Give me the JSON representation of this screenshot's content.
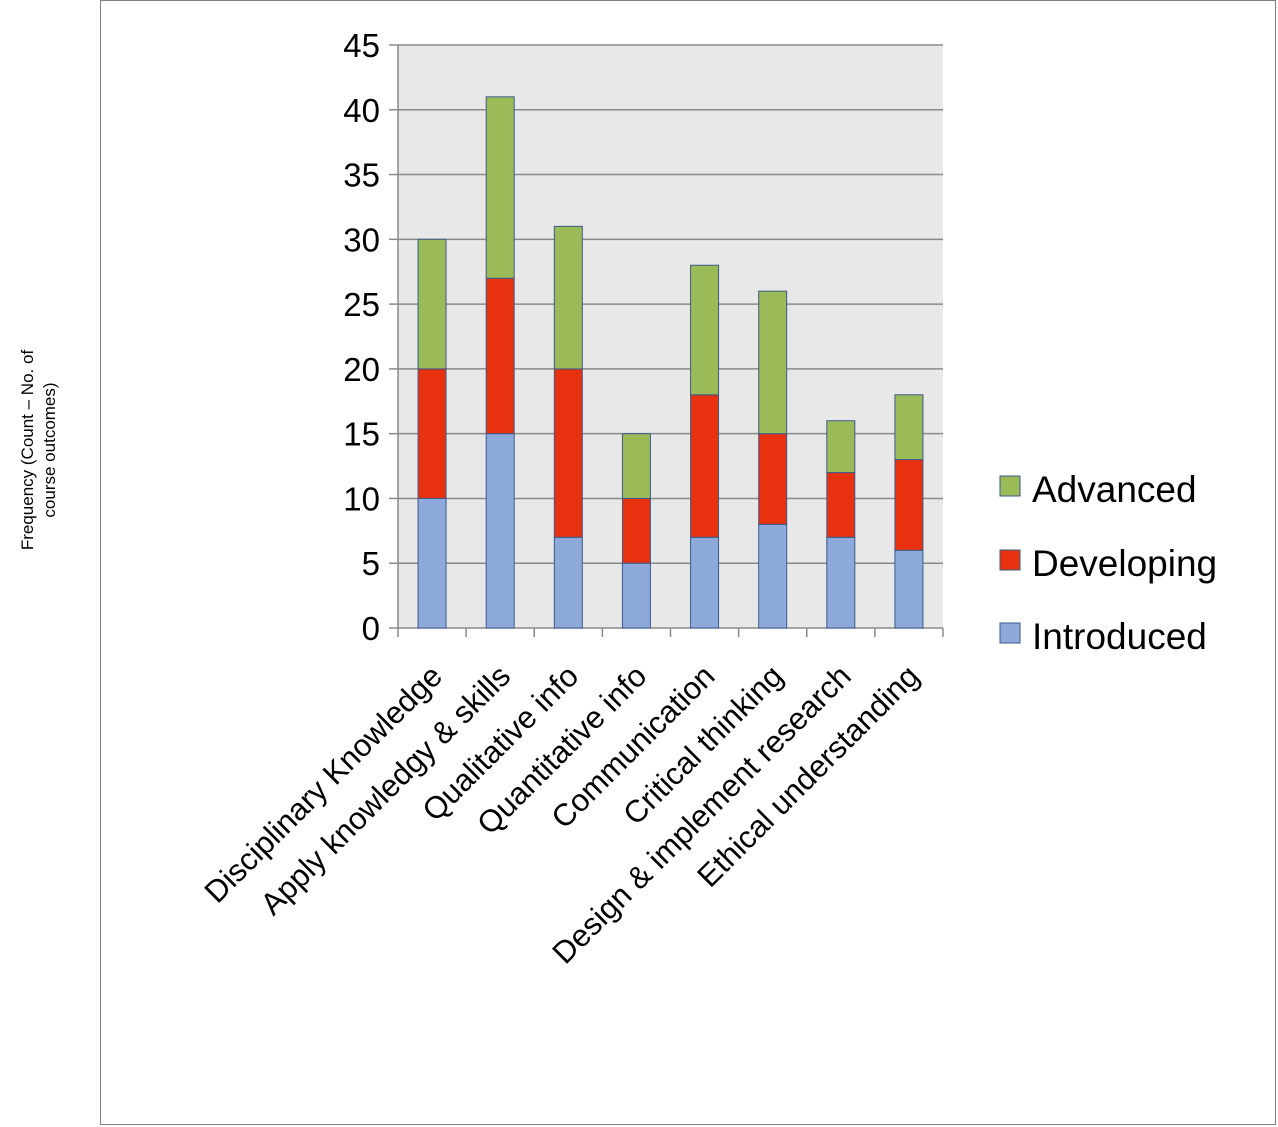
{
  "chart_data": {
    "type": "bar",
    "stacked": true,
    "categories": [
      "Disciplinary Knowledge",
      "Apply knowledgy & skills",
      "Qualitative info",
      "Quantitative info",
      "Communication",
      "Critical thinking",
      "Design & implement research",
      "Ethical understanding"
    ],
    "series": [
      {
        "name": "Introduced",
        "color": "#8eaadb",
        "values": [
          10,
          15,
          7,
          5,
          7,
          8,
          7,
          6
        ]
      },
      {
        "name": "Developing",
        "color": "#e8310e",
        "values": [
          10,
          12,
          13,
          5,
          11,
          7,
          5,
          7
        ]
      },
      {
        "name": "Advanced",
        "color": "#9bbb59",
        "values": [
          10,
          14,
          11,
          5,
          10,
          11,
          4,
          5
        ]
      }
    ],
    "ylabel": "Frequency (Count – No. of course outcomes)",
    "ylabel_lines": [
      "Frequency (Count – No. of",
      "course outcomes)"
    ],
    "ylim": [
      0,
      45
    ],
    "yticks": [
      0,
      5,
      10,
      15,
      20,
      25,
      30,
      35,
      40,
      45
    ],
    "grid": true,
    "legend": "right",
    "legend_order": [
      "Advanced",
      "Developing",
      "Introduced"
    ],
    "plot_background": "#e8e8e8"
  }
}
